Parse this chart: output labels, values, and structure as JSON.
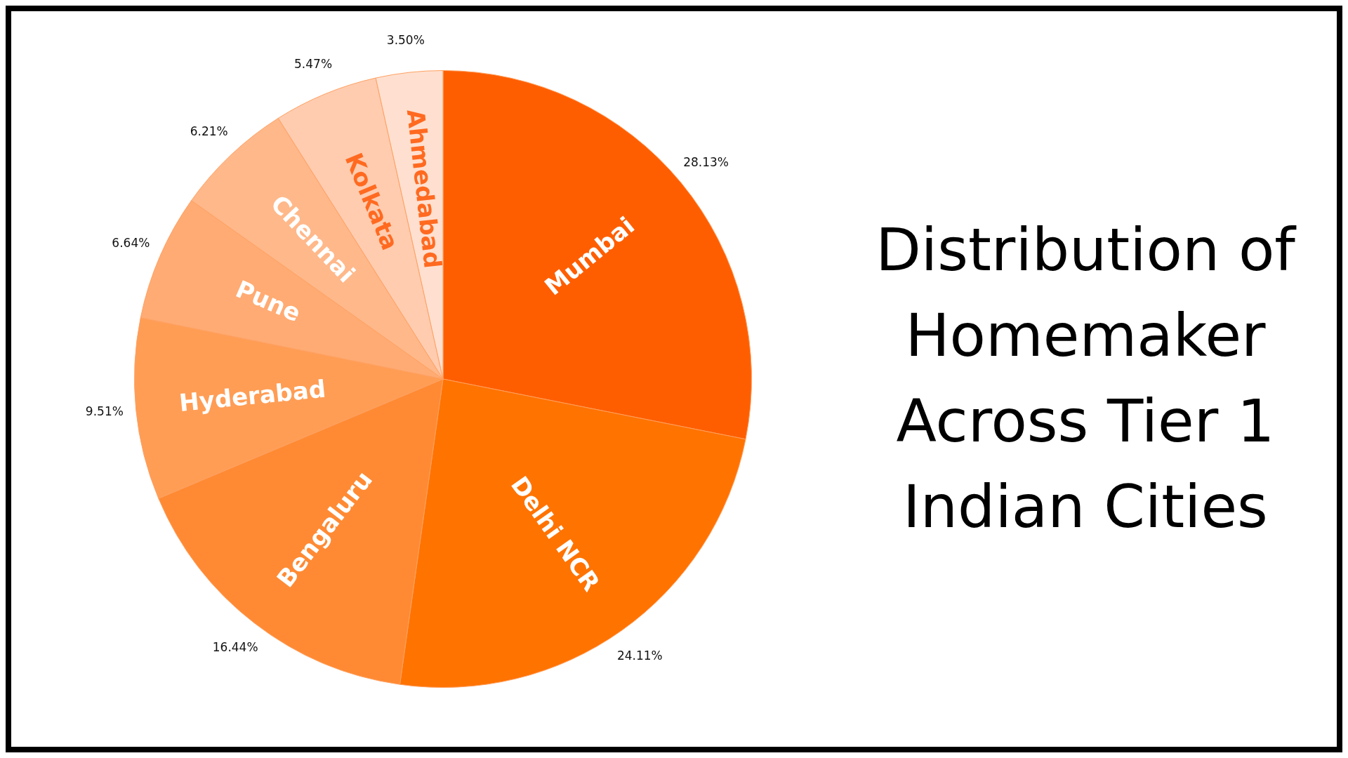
{
  "chart_data": {
    "type": "pie",
    "title": "Distribution of Homemaker Across Tier 1 Indian Cities",
    "categories": [
      "Mumbai",
      "Delhi NCR",
      "Bengaluru",
      "Hyderabad",
      "Pune",
      "Chennai",
      "Kolkata",
      "Ahmedabad"
    ],
    "values": [
      28.13,
      24.11,
      16.44,
      9.51,
      6.64,
      6.21,
      5.47,
      3.5
    ],
    "value_labels": [
      "28.13%",
      "24.11%",
      "16.44%",
      "9.51%",
      "6.64%",
      "6.21%",
      "5.47%",
      "3.50%"
    ],
    "colors": [
      "#ff5e00",
      "#ff7300",
      "#ff8a33",
      "#ff9d55",
      "#ffab73",
      "#ffb88a",
      "#ffccb0",
      "#ffe0d0"
    ],
    "legend": false
  }
}
